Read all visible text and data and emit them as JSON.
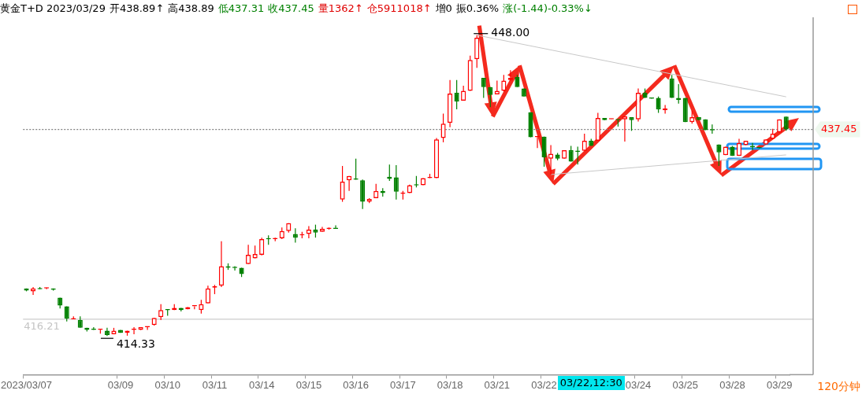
{
  "chart_data": {
    "type": "candlestick",
    "title": "黄金T+D 2023/03/29",
    "annotations": [
      "开438.89↑",
      "高438.89",
      "低437.31",
      "收437.45",
      "量1362↑",
      "仓5911018↑",
      "增0",
      "振0.36%",
      "涨(-1.44)-0.33%↓",
      "448.00",
      "414.33",
      "03/22,12:30",
      "120分钟"
    ],
    "categories": [
      "2023/03/07",
      null,
      null,
      null,
      null,
      null,
      null,
      null,
      null,
      null,
      null,
      null,
      null,
      null,
      "03/09",
      null,
      null,
      null,
      null,
      null,
      null,
      "03/10",
      null,
      null,
      null,
      null,
      null,
      null,
      "03/11",
      null,
      null,
      null,
      null,
      null,
      null,
      "03/14",
      null,
      null,
      null,
      null,
      null,
      null,
      "03/15",
      null,
      null,
      null,
      null,
      null,
      null,
      "03/16",
      null,
      null,
      null,
      null,
      null,
      null,
      "03/17",
      null,
      null,
      null,
      null,
      null,
      null,
      "03/18",
      null,
      null,
      null,
      null,
      null,
      null,
      "03/21",
      null,
      null,
      null,
      null,
      null,
      null,
      "03/22",
      null,
      null,
      null,
      null,
      null,
      null,
      null,
      null,
      null,
      null,
      null,
      null,
      null,
      "03/24",
      null,
      null,
      null,
      null,
      null,
      null,
      "03/25",
      null,
      null,
      null,
      null,
      null,
      null,
      "03/28",
      null,
      null,
      null,
      null,
      null,
      null,
      "03/29",
      null
    ],
    "ohlc": [
      [
        419.65,
        419.65,
        419.33,
        419.41
      ],
      [
        419.33,
        419.81,
        418.93,
        419.65
      ],
      [
        419.65,
        419.81,
        419.57,
        419.57
      ],
      [
        419.65,
        419.73,
        419.57,
        419.66
      ],
      [
        419.65,
        419.65,
        419.41,
        419.49
      ],
      [
        418.61,
        418.61,
        417.4,
        417.73
      ],
      [
        417.64,
        417.64,
        415.96,
        416.28
      ],
      [
        416.2,
        416.52,
        416.2,
        416.22
      ],
      [
        416.12,
        416.52,
        415.24,
        415.24
      ],
      [
        415.24,
        415.24,
        414.84,
        415.0
      ],
      [
        415.02,
        415.32,
        415.0,
        415.0
      ],
      [
        415.0,
        415.02,
        414.6,
        415.01
      ],
      [
        414.92,
        415.24,
        414.33,
        414.44
      ],
      [
        414.52,
        415.24,
        414.52,
        414.92
      ],
      [
        415.0,
        415.0,
        414.68,
        414.68
      ],
      [
        414.68,
        414.92,
        414.36,
        414.92
      ],
      [
        415.0,
        415.32,
        414.52,
        415.02
      ],
      [
        415.0,
        415.32,
        415.0,
        415.32
      ],
      [
        415.32,
        415.33,
        415.0,
        415.33
      ],
      [
        415.56,
        416.36,
        415.5,
        416.36
      ],
      [
        416.44,
        417.89,
        416.12,
        417.24
      ],
      [
        417.24,
        417.3,
        416.6,
        417.22
      ],
      [
        417.24,
        417.89,
        417.24,
        417.48
      ],
      [
        417.48,
        417.48,
        417.08,
        417.24
      ],
      [
        417.32,
        417.56,
        417.32,
        417.56
      ],
      [
        417.64,
        417.66,
        417.32,
        417.66
      ],
      [
        417.24,
        418.37,
        416.84,
        417.89
      ],
      [
        417.97,
        419.97,
        417.97,
        419.65
      ],
      [
        419.73,
        420.05,
        419.01,
        419.89
      ],
      [
        419.97,
        424.94,
        419.81,
        422.14
      ],
      [
        422.14,
        422.46,
        421.73,
        421.97
      ],
      [
        421.97,
        422.14,
        421.66,
        421.95
      ],
      [
        421.97,
        421.97,
        420.93,
        421.25
      ],
      [
        422.38,
        424.54,
        422.38,
        423.42
      ],
      [
        423.02,
        424.46,
        423.02,
        423.5
      ],
      [
        423.42,
        425.34,
        423.34,
        425.18
      ],
      [
        425.18,
        425.59,
        424.54,
        425.16
      ],
      [
        425.18,
        425.34,
        424.94,
        425.2
      ],
      [
        425.26,
        426.47,
        425.18,
        426.07
      ],
      [
        426.07,
        426.95,
        425.91,
        426.95
      ],
      [
        425.75,
        426.39,
        424.78,
        425.34
      ],
      [
        425.59,
        425.99,
        425.26,
        425.61
      ],
      [
        425.75,
        426.63,
        425.26,
        426.23
      ],
      [
        426.23,
        426.79,
        425.34,
        425.91
      ],
      [
        425.99,
        426.55,
        425.99,
        426.31
      ],
      [
        426.31,
        426.47,
        426.23,
        426.33
      ],
      [
        426.33,
        426.71,
        426.31,
        426.31
      ],
      [
        429.59,
        433.36,
        429.35,
        431.6
      ],
      [
        431.76,
        432.24,
        430.56,
        432.24
      ],
      [
        431.84,
        434.17,
        431.82,
        431.82
      ],
      [
        431.76,
        431.84,
        428.55,
        429.35
      ],
      [
        429.35,
        429.76,
        429.2,
        429.67
      ],
      [
        429.76,
        431.36,
        429.76,
        430.56
      ],
      [
        430.56,
        430.88,
        429.92,
        430.32
      ],
      [
        432.16,
        433.52,
        431.68,
        431.92
      ],
      [
        432.08,
        433.44,
        429.59,
        430.48
      ],
      [
        430.24,
        430.56,
        429.59,
        430.26
      ],
      [
        430.32,
        431.28,
        430.32,
        431.2
      ],
      [
        431.2,
        432.24,
        430.96,
        431.18
      ],
      [
        431.2,
        432.0,
        431.2,
        432.0
      ],
      [
        432.0,
        432.48,
        432.0,
        432.02
      ],
      [
        432.0,
        436.49,
        432.0,
        436.33
      ],
      [
        436.49,
        439.22,
        436.01,
        438.1
      ],
      [
        438.18,
        442.99,
        437.69,
        441.46
      ],
      [
        441.54,
        442.99,
        439.7,
        440.58
      ],
      [
        440.66,
        442.35,
        440.66,
        441.78
      ],
      [
        441.78,
        445.71,
        441.78,
        445.23
      ],
      [
        445.31,
        448.0,
        444.35,
        447.72
      ],
      [
        443.23,
        443.23,
        440.98,
        442.19
      ],
      [
        442.19,
        442.19,
        439.94,
        441.3
      ],
      [
        441.38,
        442.91,
        441.38,
        441.78
      ],
      [
        441.78,
        443.55,
        441.7,
        442.91
      ],
      [
        442.99,
        444.09,
        442.91,
        443.23
      ],
      [
        443.31,
        443.55,
        442.19,
        442.19
      ],
      [
        442.03,
        442.03,
        441.14,
        441.14
      ],
      [
        439.38,
        439.38,
        436.57,
        436.57
      ],
      [
        436.57,
        436.6,
        435.37,
        436.59
      ],
      [
        436.65,
        436.65,
        433.28,
        434.33
      ],
      [
        434.17,
        435.69,
        432.4,
        434.73
      ],
      [
        434.65,
        434.81,
        434.01,
        434.17
      ],
      [
        434.17,
        435.13,
        434.17,
        435.13
      ],
      [
        435.13,
        435.61,
        433.85,
        433.85
      ],
      [
        434.97,
        435.53,
        433.52,
        434.95
      ],
      [
        435.05,
        436.97,
        435.05,
        436.17
      ],
      [
        436.17,
        436.41,
        435.61,
        435.61
      ],
      [
        436.17,
        439.3,
        436.17,
        438.74
      ],
      [
        438.74,
        438.74,
        438.5,
        438.5
      ],
      [
        438.58,
        438.6,
        438.58,
        438.6
      ],
      [
        438.5,
        438.5,
        437.77,
        438.48
      ],
      [
        438.58,
        438.9,
        436.09,
        438.9
      ],
      [
        438.82,
        438.82,
        437.29,
        438.5
      ],
      [
        438.58,
        442.03,
        438.34,
        441.54
      ],
      [
        441.54,
        442.03,
        440.98,
        440.98
      ],
      [
        440.98,
        440.98,
        440.9,
        440.9
      ],
      [
        440.98,
        441.14,
        439.3,
        439.7
      ],
      [
        439.62,
        440.18,
        439.22,
        439.78
      ],
      [
        443.15,
        443.55,
        440.98,
        440.98
      ],
      [
        440.98,
        442.51,
        440.34,
        440.74
      ],
      [
        440.98,
        440.98,
        438.26,
        438.26
      ],
      [
        438.26,
        439.54,
        438.1,
        438.82
      ],
      [
        438.82,
        438.82,
        438.5,
        438.5
      ],
      [
        438.58,
        438.58,
        437.37,
        437.37
      ],
      [
        437.37,
        438.01,
        436.97,
        437.35
      ],
      [
        435.77,
        435.77,
        433.36,
        434.89
      ],
      [
        434.57,
        435.53,
        434.57,
        435.53
      ],
      [
        435.53,
        435.6,
        434.49,
        434.49
      ],
      [
        434.49,
        436.41,
        434.49,
        435.93
      ],
      [
        435.69,
        436.17,
        435.69,
        436.17
      ],
      [
        435.61,
        435.93,
        435.13,
        435.45
      ],
      [
        435.37,
        435.37,
        435.3,
        435.35
      ],
      [
        435.77,
        436.33,
        435.77,
        436.33
      ],
      [
        436.41,
        437.53,
        436.41,
        436.97
      ],
      [
        437.13,
        438.58,
        437.13,
        438.58
      ],
      [
        438.89,
        438.89,
        437.31,
        437.45
      ]
    ],
    "series": [
      {
        "type": "line",
        "color": "#c8c8c8",
        "values": [
          null,
          null,
          null,
          null,
          null,
          null,
          null,
          null,
          null,
          null,
          null,
          null,
          null,
          null,
          null,
          null,
          null,
          null,
          null,
          null,
          null,
          null,
          null,
          null,
          null,
          null,
          null,
          null,
          null,
          null,
          null,
          null,
          null,
          null,
          null,
          null,
          null,
          null,
          null,
          null,
          null,
          null,
          null,
          null,
          null,
          null,
          null,
          null,
          null,
          null,
          null,
          null,
          null,
          null,
          null,
          null,
          null,
          null,
          null,
          null,
          null,
          null,
          null,
          null,
          null,
          null,
          null,
          448.0,
          null,
          null,
          null,
          null,
          null,
          null,
          null,
          null,
          null,
          null,
          null,
          null,
          null,
          null,
          null,
          null,
          null,
          null,
          null,
          null,
          null,
          null,
          null,
          null,
          null,
          null,
          null,
          null,
          null,
          null,
          null,
          null,
          null,
          null,
          null,
          null,
          null,
          null,
          null,
          null,
          null,
          null,
          null,
          null,
          null,
          441.1
        ]
      },
      {
        "type": "line",
        "color": "#c8c8c8",
        "values": [
          null,
          null,
          null,
          null,
          null,
          null,
          null,
          null,
          null,
          null,
          null,
          null,
          null,
          null,
          null,
          null,
          null,
          null,
          null,
          null,
          null,
          null,
          null,
          null,
          null,
          null,
          null,
          null,
          null,
          null,
          null,
          null,
          null,
          null,
          null,
          null,
          null,
          null,
          null,
          null,
          null,
          null,
          null,
          null,
          null,
          null,
          null,
          null,
          null,
          null,
          null,
          null,
          null,
          null,
          null,
          null,
          null,
          null,
          null,
          null,
          null,
          null,
          null,
          null,
          null,
          null,
          null,
          null,
          null,
          null,
          null,
          null,
          null,
          null,
          null,
          null,
          null,
          null,
          432.4,
          null,
          null,
          null,
          null,
          null,
          null,
          null,
          null,
          null,
          null,
          null,
          null,
          null,
          null,
          null,
          null,
          null,
          null,
          null,
          null,
          null,
          null,
          null,
          null,
          null,
          null,
          null,
          null,
          null,
          null,
          null,
          null,
          null,
          null,
          434.6
        ]
      }
    ],
    "ref_lines": [
      {
        "axis": "y",
        "value": 437.45,
        "label": "437.45",
        "color": "#808080",
        "line_style": "dotted"
      },
      {
        "axis": "y",
        "value": 416.21,
        "label": "416.21",
        "color": "#cccccc",
        "line_style": "solid"
      }
    ],
    "tick_labels": "x"
  }
}
